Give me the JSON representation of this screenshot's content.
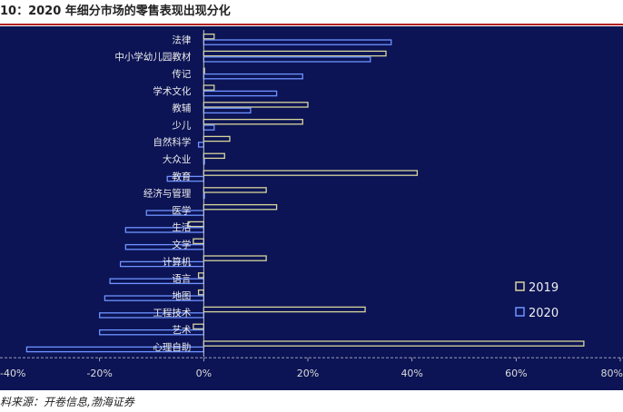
{
  "header": {
    "title": "10：2020 年细分市场的零售表现出现分化"
  },
  "footer": {
    "source": "料来源：开卷信息,渤海证券"
  },
  "colors": {
    "panel_bg": "#0c1455",
    "series_2019": "#d8d49c",
    "series_2020": "#6f93ff",
    "axis": "#c8c8c8"
  },
  "chart_data": {
    "type": "bar",
    "orientation": "horizontal",
    "title": "",
    "xlabel": "",
    "ylabel": "",
    "xlim": [
      -40,
      80
    ],
    "x_ticks": [
      -40,
      -20,
      0,
      20,
      40,
      60,
      80
    ],
    "x_tick_labels": [
      "-40%",
      "-20%",
      "0%",
      "20%",
      "40%",
      "60%",
      "80%"
    ],
    "grid": false,
    "legend_position": "right",
    "categories": [
      "法律",
      "中小学幼儿园教材",
      "传记",
      "学术文化",
      "教辅",
      "少儿",
      "自然科学",
      "大众业",
      "教育",
      "经济与管理",
      "医学",
      "生活",
      "文学",
      "计算机",
      "语言",
      "地图",
      "工程技术",
      "艺术",
      "心理自助"
    ],
    "series": [
      {
        "name": "2019",
        "values": [
          2,
          35,
          0,
          2,
          20,
          19,
          5,
          4,
          41,
          12,
          14,
          -3,
          -2,
          12,
          -1,
          -1,
          31,
          -2,
          73
        ]
      },
      {
        "name": "2020",
        "values": [
          36,
          32,
          19,
          14,
          9,
          2,
          -1,
          0,
          -7,
          0,
          -11,
          -15,
          -15,
          -16,
          -18,
          -19,
          -20,
          -20,
          -34
        ]
      }
    ]
  }
}
